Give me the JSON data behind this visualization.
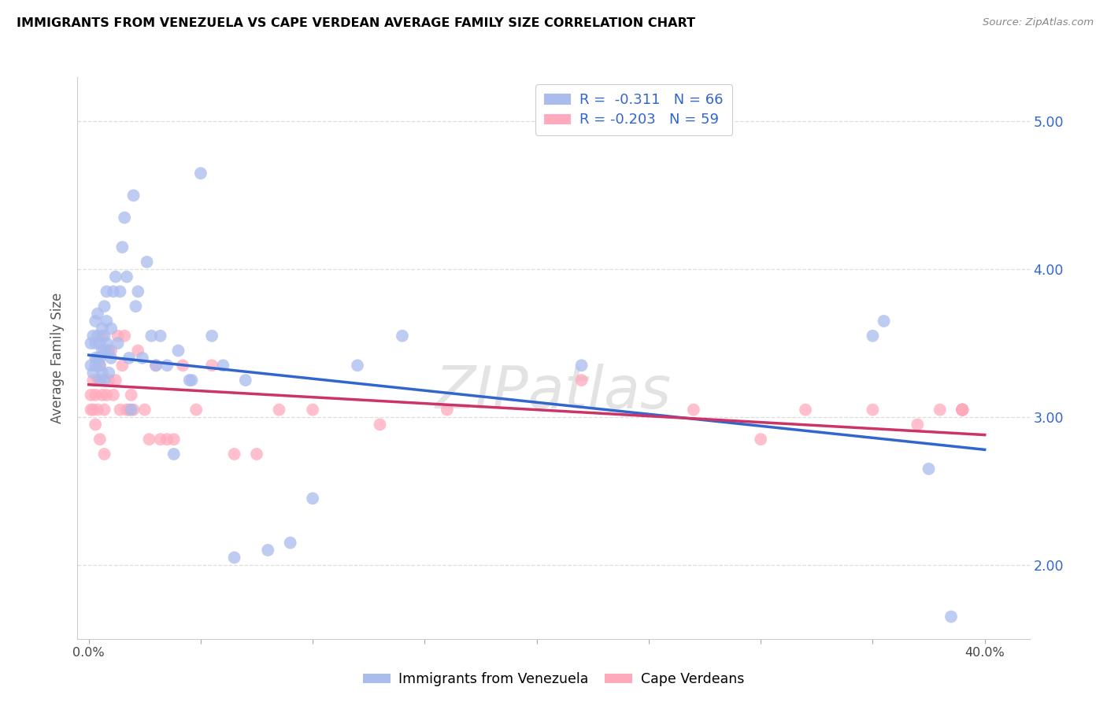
{
  "title": "IMMIGRANTS FROM VENEZUELA VS CAPE VERDEAN AVERAGE FAMILY SIZE CORRELATION CHART",
  "source": "Source: ZipAtlas.com",
  "ylabel": "Average Family Size",
  "ylim": [
    1.5,
    5.3
  ],
  "xlim": [
    -0.005,
    0.42
  ],
  "yticks": [
    2.0,
    3.0,
    4.0,
    5.0
  ],
  "xtick_positions": [
    0.0,
    0.05,
    0.1,
    0.15,
    0.2,
    0.25,
    0.3,
    0.35,
    0.4
  ],
  "xtick_labels": [
    "0.0%",
    "",
    "",
    "",
    "",
    "",
    "",
    "",
    "40.0%"
  ],
  "blue_scatter_color": "#aabbee",
  "pink_scatter_color": "#ffaabb",
  "blue_line_color": "#3366cc",
  "pink_line_color": "#cc3366",
  "ytick_color": "#3366cc",
  "watermark": "ZIPatlas",
  "blue_r_text": "R =  -0.311",
  "blue_n_text": "N = 66",
  "pink_r_text": "R = -0.203",
  "pink_n_text": "N = 59",
  "legend2_blue": "Immigrants from Venezuela",
  "legend2_pink": "Cape Verdeans",
  "blue_scatter_x": [
    0.001,
    0.001,
    0.002,
    0.002,
    0.003,
    0.003,
    0.003,
    0.003,
    0.004,
    0.004,
    0.004,
    0.005,
    0.005,
    0.005,
    0.005,
    0.006,
    0.006,
    0.006,
    0.007,
    0.007,
    0.007,
    0.007,
    0.008,
    0.008,
    0.008,
    0.009,
    0.009,
    0.01,
    0.01,
    0.011,
    0.012,
    0.013,
    0.014,
    0.015,
    0.016,
    0.017,
    0.018,
    0.019,
    0.02,
    0.021,
    0.022,
    0.024,
    0.026,
    0.028,
    0.03,
    0.032,
    0.035,
    0.038,
    0.04,
    0.045,
    0.05,
    0.055,
    0.06,
    0.07,
    0.08,
    0.09,
    0.12,
    0.14,
    0.22,
    0.35,
    0.355,
    0.375,
    0.385,
    0.1,
    0.065,
    0.046
  ],
  "blue_scatter_y": [
    3.35,
    3.5,
    3.3,
    3.55,
    3.4,
    3.5,
    3.35,
    3.65,
    3.4,
    3.55,
    3.7,
    3.35,
    3.5,
    3.4,
    3.25,
    3.6,
    3.45,
    3.3,
    3.75,
    3.55,
    3.45,
    3.25,
    3.85,
    3.65,
    3.5,
    3.45,
    3.3,
    3.6,
    3.4,
    3.85,
    3.95,
    3.5,
    3.85,
    4.15,
    4.35,
    3.95,
    3.4,
    3.05,
    4.5,
    3.75,
    3.85,
    3.4,
    4.05,
    3.55,
    3.35,
    3.55,
    3.35,
    2.75,
    3.45,
    3.25,
    4.65,
    3.55,
    3.35,
    3.25,
    2.1,
    2.15,
    3.35,
    3.55,
    3.35,
    3.55,
    3.65,
    2.65,
    1.65,
    2.45,
    2.05,
    3.25
  ],
  "pink_scatter_x": [
    0.001,
    0.001,
    0.002,
    0.002,
    0.003,
    0.003,
    0.004,
    0.004,
    0.005,
    0.005,
    0.006,
    0.006,
    0.007,
    0.007,
    0.008,
    0.008,
    0.009,
    0.01,
    0.011,
    0.012,
    0.013,
    0.014,
    0.015,
    0.016,
    0.017,
    0.018,
    0.019,
    0.02,
    0.022,
    0.025,
    0.027,
    0.03,
    0.032,
    0.035,
    0.038,
    0.042,
    0.048,
    0.055,
    0.065,
    0.075,
    0.085,
    0.1,
    0.13,
    0.16,
    0.22,
    0.27,
    0.3,
    0.32,
    0.35,
    0.37,
    0.38,
    0.39,
    0.39,
    0.39,
    0.39,
    0.39,
    0.39,
    0.39,
    0.39
  ],
  "pink_scatter_y": [
    3.15,
    3.05,
    3.25,
    3.05,
    2.95,
    3.15,
    3.25,
    3.05,
    3.35,
    2.85,
    3.15,
    3.55,
    3.05,
    2.75,
    3.15,
    3.45,
    3.25,
    3.45,
    3.15,
    3.25,
    3.55,
    3.05,
    3.35,
    3.55,
    3.05,
    3.05,
    3.15,
    3.05,
    3.45,
    3.05,
    2.85,
    3.35,
    2.85,
    2.85,
    2.85,
    3.35,
    3.05,
    3.35,
    2.75,
    2.75,
    3.05,
    3.05,
    2.95,
    3.05,
    3.25,
    3.05,
    2.85,
    3.05,
    3.05,
    2.95,
    3.05,
    3.05,
    3.05,
    3.05,
    3.05,
    3.05,
    3.05,
    3.05,
    3.05
  ],
  "blue_line_x0": 0.0,
  "blue_line_x1": 0.4,
  "blue_line_y0": 3.42,
  "blue_line_y1": 2.78,
  "pink_line_x0": 0.0,
  "pink_line_x1": 0.4,
  "pink_line_y0": 3.22,
  "pink_line_y1": 2.88
}
